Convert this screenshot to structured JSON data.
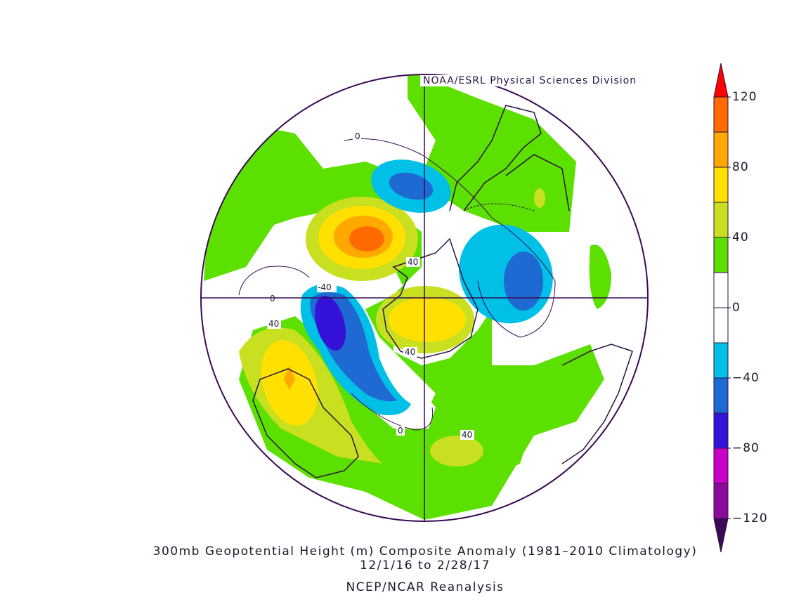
{
  "credit": "NOAA/ESRL Physical Sciences Division",
  "title": {
    "line1": "300mb Geopotential Height (m) Composite Anomaly (1981–2010 Climatology)",
    "line2": "12/1/16  to 2/28/17",
    "line3": "NCEP/NCAR Reanalysis"
  },
  "colorbar": {
    "ticks": [
      "120",
      "80",
      "40",
      "0",
      "−40",
      "−80",
      "−120"
    ],
    "colors": [
      "#ff0000",
      "#ff6a00",
      "#ffa800",
      "#ffe000",
      "#c8e020",
      "#5ce000",
      "#ffffff",
      "#ffffff",
      "#00c0e8",
      "#1e6ad2",
      "#3412d8",
      "#c800c8",
      "#8a0a9a",
      "#3a0a56"
    ]
  },
  "contour_labels": [
    "0",
    "40",
    "-40",
    "0",
    "40",
    "40",
    "0",
    "40"
  ]
}
